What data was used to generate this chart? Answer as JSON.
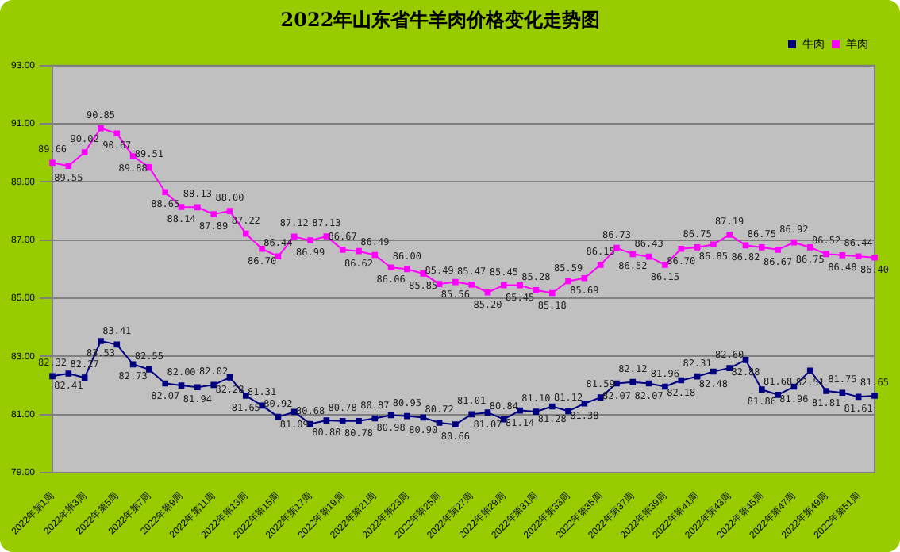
{
  "chart_data": {
    "type": "line",
    "title": "2022年山东省牛羊肉价格变化走势图",
    "categories": [
      "2022年第1周",
      null,
      "2022年第3周",
      null,
      "2022年第5周",
      null,
      "2022年第7周",
      null,
      "2022年第9周",
      null,
      "2022年第11周",
      null,
      "2022年第13周",
      null,
      "2022年第15周",
      null,
      "2022年第17周",
      null,
      "2022年第19周",
      null,
      "2022年第21周",
      null,
      "2022年第23周",
      null,
      "2022年第25周",
      null,
      "2022年第27周",
      null,
      "2022年第29周",
      null,
      "2022年第31周",
      null,
      "2022年第33周",
      null,
      "2022年第35周",
      null,
      "2022年第37周",
      null,
      "2022年第39周",
      null,
      "2022年第41周",
      null,
      "2022年第43周",
      null,
      "2022年第45周",
      null,
      "2022年第47周",
      null,
      "2022年第49周",
      null,
      "2022年第51周",
      null
    ],
    "series": [
      {
        "name": "牛肉",
        "color": "#000080",
        "values": [
          82.32,
          82.41,
          82.27,
          83.53,
          83.41,
          82.73,
          82.55,
          82.07,
          82.0,
          81.94,
          82.02,
          82.28,
          81.65,
          81.31,
          80.92,
          81.09,
          80.68,
          80.8,
          80.78,
          80.78,
          80.87,
          80.98,
          80.95,
          80.9,
          80.72,
          80.66,
          81.01,
          81.07,
          80.84,
          81.14,
          81.1,
          81.28,
          81.12,
          81.38,
          81.59,
          82.07,
          82.12,
          82.07,
          81.96,
          82.18,
          82.31,
          82.48,
          82.6,
          82.88,
          81.86,
          81.68,
          81.96,
          82.51,
          81.81,
          81.75,
          81.61,
          81.65
        ],
        "value_labels": [
          "82.32",
          "82.41",
          "82.27",
          "83.53",
          "83.41",
          "82.73",
          "82.55",
          "82.07",
          "82.00",
          "81.94",
          "82.02",
          "82.28",
          "81.65",
          "81.31",
          "80.92",
          "81.09",
          "80.68",
          "80.80",
          "80.78",
          "80.78",
          "80.87",
          "80.98",
          "80.95",
          "80.90",
          "80.72",
          "80.66",
          "81.01",
          "81.07",
          "80.84",
          "81.14",
          "81.10",
          "81.28",
          "81.12",
          "81.38",
          "81.59",
          "82.07",
          "82.12",
          "82.07",
          "81.96",
          "82.18",
          "82.31",
          "82.48",
          "82.60",
          "82.88",
          "81.86",
          "81.68",
          "81.96",
          "82.51",
          "81.81",
          "81.75",
          "81.61",
          "81.65"
        ]
      },
      {
        "name": "羊肉",
        "color": "#ff00ff",
        "values": [
          89.66,
          89.55,
          90.02,
          90.85,
          90.67,
          89.88,
          89.51,
          88.65,
          88.14,
          88.13,
          87.89,
          88.0,
          87.22,
          86.7,
          86.44,
          87.12,
          86.99,
          87.13,
          86.67,
          86.62,
          86.49,
          86.06,
          86.0,
          85.85,
          85.49,
          85.56,
          85.47,
          85.2,
          85.45,
          85.45,
          85.28,
          85.18,
          85.59,
          85.69,
          86.15,
          86.73,
          86.52,
          86.43,
          86.15,
          86.7,
          86.75,
          86.85,
          87.19,
          86.82,
          86.75,
          86.67,
          86.92,
          86.75,
          86.52,
          86.48,
          86.44,
          86.4
        ],
        "value_labels": [
          "89.66",
          "89.55",
          "90.02",
          "90.85",
          "90.67",
          "89.88",
          "89.51",
          "88.65",
          "88.14",
          "88.13",
          "87.89",
          "88.00",
          "87.22",
          "86.70",
          "86.44",
          "87.12",
          "86.99",
          "87.13",
          "86.67",
          "86.62",
          "86.49",
          "86.06",
          "86.00",
          "85.85",
          "85.49",
          "85.56",
          "85.47",
          "85.20",
          "85.45",
          "85.45",
          "85.28",
          "85.18",
          "85.59",
          "85.69",
          "86.15",
          "86.73",
          "86.52",
          "86.43",
          "86.15",
          "86.70",
          "86.75",
          "86.85",
          "87.19",
          "86.82",
          "86.75",
          "86.67",
          "86.92",
          "86.75",
          "86.52",
          "86.48",
          "86.44",
          "86.40"
        ]
      }
    ],
    "ylim": [
      79,
      93
    ],
    "yticks": [
      {
        "value": 79,
        "label": "79.00"
      },
      {
        "value": 81,
        "label": "81.00"
      },
      {
        "value": 83,
        "label": "83.00"
      },
      {
        "value": 85,
        "label": "85.00"
      },
      {
        "value": 87,
        "label": "87.00"
      },
      {
        "value": 89,
        "label": "89.00"
      },
      {
        "value": 91,
        "label": "91.00"
      },
      {
        "value": 93,
        "label": "93.00"
      }
    ],
    "grid": "y",
    "legend": "top right",
    "marker": "square",
    "line_style": "solid"
  }
}
